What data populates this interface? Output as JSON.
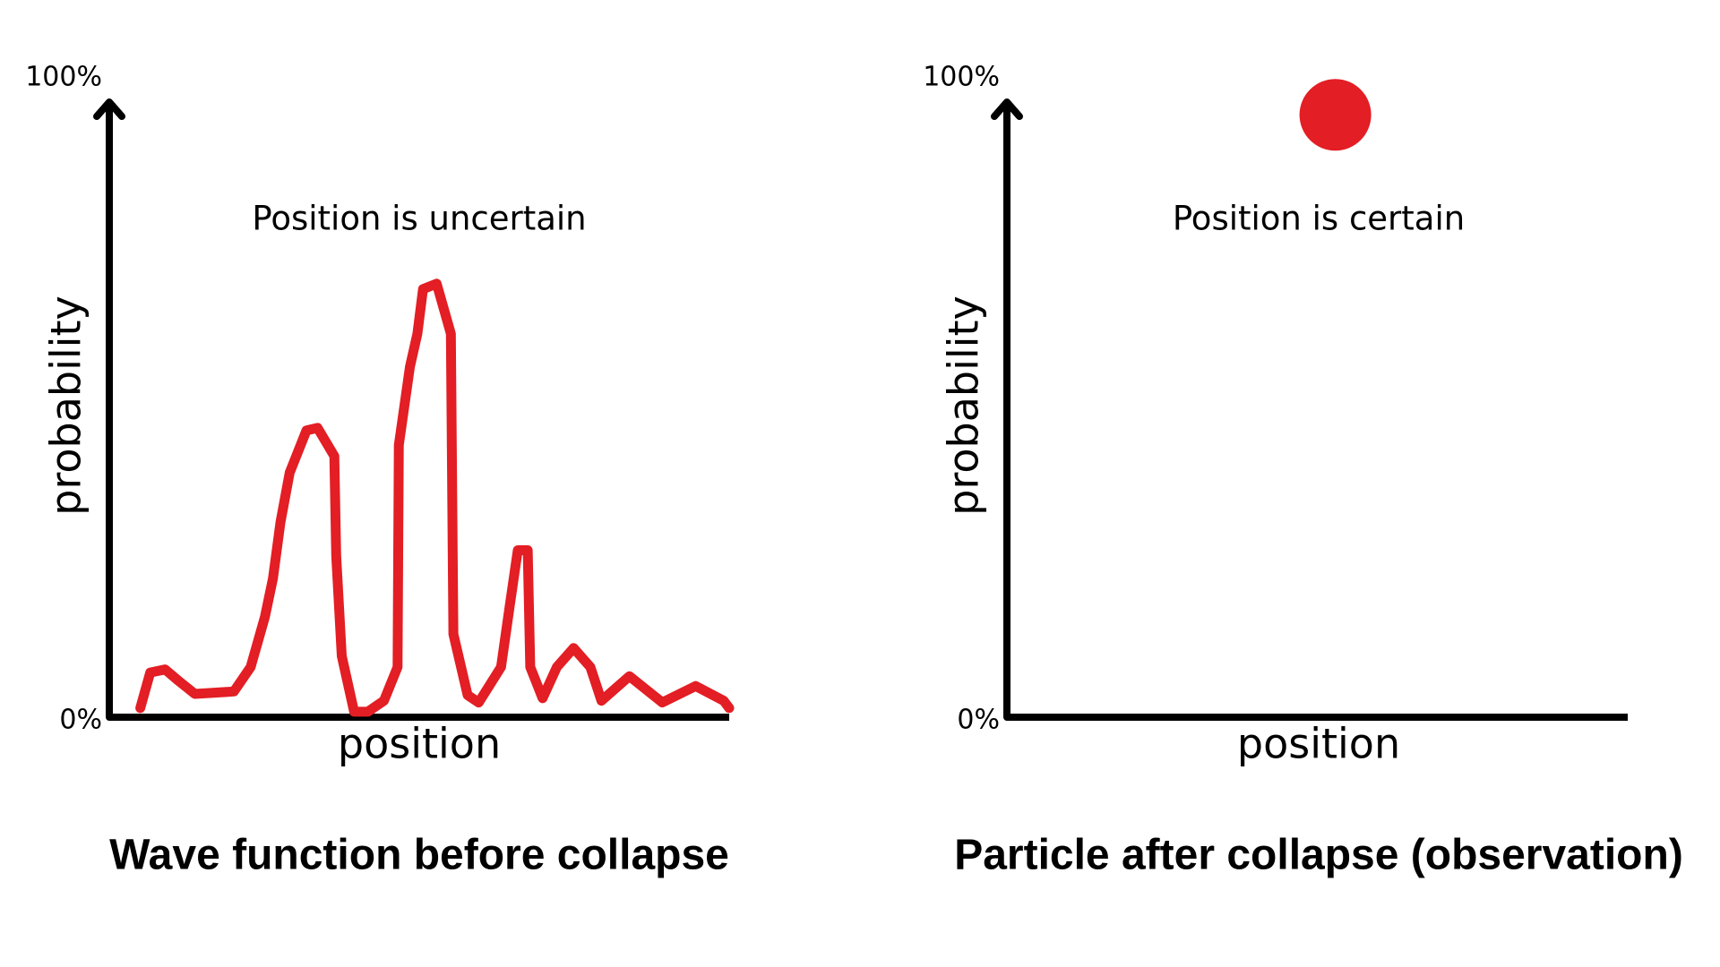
{
  "chart_data": [
    {
      "type": "line",
      "title": "Wave function before collapse",
      "annotation": "Position is uncertain",
      "xlabel": "position",
      "ylabel": "probability",
      "color": "#e31e24",
      "x": [
        5.0,
        6.6,
        9.0,
        11.1,
        13.8,
        20.1,
        22.8,
        25.1,
        26.4,
        27.6,
        29.1,
        31.8,
        33.6,
        36.3,
        36.6,
        37.5,
        39.5,
        41.7,
        44.3,
        46.5,
        46.7,
        48.5,
        49.7,
        50.6,
        52.8,
        55.1,
        55.5,
        57.8,
        59.6,
        63.2,
        64.6,
        65.9,
        67.5,
        67.9,
        69.9,
        72.2,
        74.9,
        77.6,
        79.4,
        83.9,
        89.2,
        94.6,
        99.1,
        100
      ],
      "values": [
        1.5,
        7.3,
        7.8,
        6.0,
        3.8,
        4.2,
        8.2,
        16.4,
        22.7,
        31.8,
        40,
        46.9,
        47.3,
        42.7,
        26.4,
        10,
        0.9,
        0.9,
        2.7,
        8.2,
        44.5,
        57.3,
        62.7,
        70,
        70.9,
        62.7,
        13.6,
        3.6,
        2.4,
        8.2,
        18.2,
        27.3,
        27.3,
        8.2,
        3.1,
        8.2,
        11.3,
        8.2,
        2.7,
        6.7,
        2.4,
        5.1,
        2.7,
        1.5
      ],
      "xlim": [
        0,
        100
      ],
      "ylim": [
        0,
        100
      ],
      "yticks": [
        {
          "value": 0,
          "label": "0%"
        },
        {
          "value": 100,
          "label": "100%"
        }
      ]
    },
    {
      "type": "scatter",
      "title": "Particle after collapse (observation)",
      "annotation": "Position is certain",
      "xlabel": "position",
      "ylabel": "probability",
      "color": "#e31e24",
      "x": [
        52.9
      ],
      "values": [
        98.5
      ],
      "xlim": [
        0,
        100
      ],
      "ylim": [
        0,
        100
      ],
      "yticks": [
        {
          "value": 0,
          "label": "0%"
        },
        {
          "value": 100,
          "label": "100%"
        }
      ]
    }
  ]
}
